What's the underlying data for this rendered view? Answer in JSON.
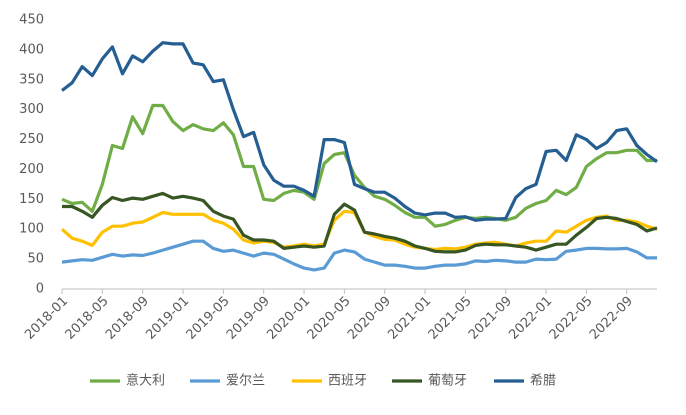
{
  "chart_data": {
    "type": "line",
    "categories": [
      "2018-01",
      null,
      null,
      null,
      "2018-05",
      null,
      null,
      null,
      "2018-09",
      null,
      null,
      null,
      "2019-01",
      null,
      null,
      null,
      "2019-05",
      null,
      null,
      null,
      "2019-09",
      null,
      null,
      null,
      "2020-01",
      null,
      null,
      null,
      "2020-05",
      null,
      null,
      null,
      "2020-09",
      null,
      null,
      null,
      "2021-01",
      null,
      null,
      null,
      "2021-05",
      null,
      null,
      null,
      "2021-09",
      null,
      null,
      null,
      "2022-01",
      null,
      null,
      null,
      "2022-05",
      null,
      null,
      null,
      "2022-09",
      null,
      null,
      null
    ],
    "ylim": [
      0,
      450
    ],
    "yticks": [
      0,
      50,
      100,
      150,
      200,
      250,
      300,
      350,
      400,
      450
    ],
    "grid": false,
    "legend": "bottom",
    "series": [
      {
        "name": "意大利",
        "color": "#70ad47",
        "values": [
          150,
          143,
          145,
          130,
          175,
          240,
          235,
          288,
          260,
          307,
          307,
          280,
          265,
          275,
          268,
          265,
          278,
          258,
          205,
          205,
          150,
          148,
          160,
          165,
          162,
          150,
          210,
          225,
          228,
          190,
          170,
          155,
          150,
          140,
          128,
          120,
          120,
          105,
          108,
          115,
          120,
          118,
          120,
          118,
          115,
          120,
          135,
          143,
          148,
          165,
          158,
          170,
          205,
          218,
          228,
          228,
          232,
          232,
          215,
          215
        ]
      },
      {
        "name": "爱尔兰",
        "color": "#5b9bd5",
        "values": [
          45,
          47,
          49,
          48,
          53,
          58,
          55,
          57,
          56,
          60,
          65,
          70,
          75,
          80,
          80,
          68,
          63,
          65,
          60,
          55,
          60,
          58,
          50,
          42,
          35,
          32,
          35,
          60,
          65,
          62,
          50,
          45,
          40,
          40,
          38,
          35,
          35,
          38,
          40,
          40,
          42,
          47,
          46,
          48,
          47,
          45,
          45,
          50,
          49,
          50,
          63,
          65,
          68,
          68,
          67,
          67,
          68,
          62,
          52,
          52
        ]
      },
      {
        "name": "西班牙",
        "color": "#ffc000",
        "values": [
          100,
          85,
          80,
          73,
          95,
          105,
          105,
          110,
          112,
          120,
          128,
          125,
          125,
          125,
          125,
          115,
          110,
          100,
          82,
          77,
          80,
          78,
          70,
          72,
          75,
          72,
          75,
          115,
          130,
          128,
          95,
          88,
          83,
          82,
          75,
          70,
          68,
          66,
          68,
          67,
          70,
          75,
          77,
          78,
          75,
          72,
          77,
          80,
          80,
          97,
          95,
          105,
          115,
          120,
          122,
          115,
          115,
          112,
          105,
          100
        ]
      },
      {
        "name": "葡萄牙",
        "color": "#375623",
        "values": [
          138,
          138,
          130,
          120,
          140,
          153,
          148,
          152,
          150,
          155,
          160,
          152,
          155,
          152,
          148,
          130,
          122,
          117,
          90,
          82,
          82,
          80,
          68,
          70,
          72,
          70,
          72,
          125,
          142,
          132,
          95,
          92,
          88,
          85,
          80,
          72,
          68,
          63,
          62,
          62,
          65,
          73,
          75,
          74,
          74,
          72,
          70,
          65,
          70,
          75,
          75,
          90,
          103,
          118,
          120,
          118,
          113,
          108,
          97,
          102
        ]
      },
      {
        "name": "希腊",
        "color": "#255e91",
        "values": [
          332,
          345,
          372,
          357,
          385,
          405,
          360,
          390,
          380,
          398,
          412,
          410,
          410,
          378,
          375,
          347,
          350,
          300,
          255,
          262,
          208,
          182,
          172,
          172,
          165,
          155,
          250,
          250,
          245,
          175,
          168,
          162,
          162,
          152,
          138,
          127,
          124,
          127,
          127,
          120,
          121,
          115,
          117,
          117,
          118,
          153,
          168,
          175,
          230,
          232,
          215,
          258,
          250,
          235,
          245,
          265,
          268,
          240,
          225,
          213
        ]
      }
    ]
  }
}
